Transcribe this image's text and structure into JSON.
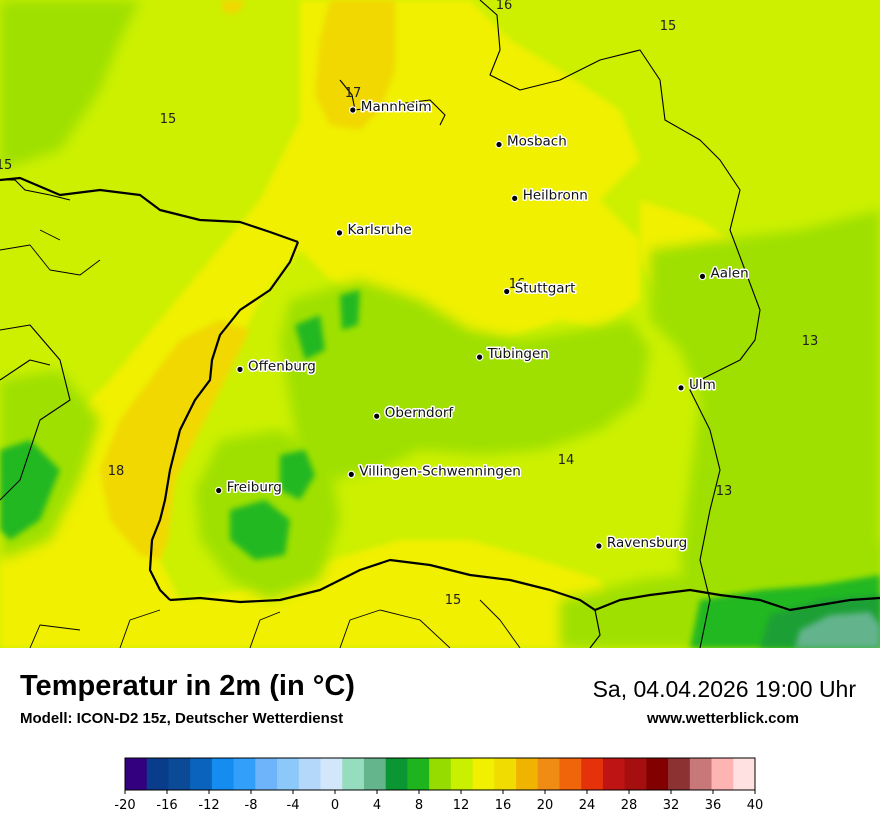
{
  "map": {
    "cities": [
      {
        "name": "Mannheim",
        "lon": 8.466,
        "lat": 49.488
      },
      {
        "name": "Mosbach",
        "lon": 9.146,
        "lat": 49.353
      },
      {
        "name": "Heilbronn",
        "lon": 9.219,
        "lat": 49.142
      },
      {
        "name": "Karlsruhe",
        "lon": 8.404,
        "lat": 49.007
      },
      {
        "name": "Aalen",
        "lon": 10.093,
        "lat": 48.837
      },
      {
        "name": "Stuttgart",
        "lon": 9.182,
        "lat": 48.778
      },
      {
        "name": "Tübingen",
        "lon": 9.056,
        "lat": 48.521
      },
      {
        "name": "Offenburg",
        "lon": 7.941,
        "lat": 48.473
      },
      {
        "name": "Ulm",
        "lon": 9.993,
        "lat": 48.401
      },
      {
        "name": "Oberndorf",
        "lon": 8.577,
        "lat": 48.29
      },
      {
        "name": "Villingen-Schwenningen",
        "lon": 8.459,
        "lat": 48.062
      },
      {
        "name": "Freiburg",
        "lon": 7.842,
        "lat": 47.999
      },
      {
        "name": "Ravensburg",
        "lon": 9.611,
        "lat": 47.782
      }
    ],
    "isotherm_labels": [
      "16",
      "15",
      "17",
      "15",
      "15",
      "16",
      "13",
      "13",
      "14",
      "18",
      "15"
    ],
    "colors": {
      "water_or_alps": "#9fd8c0",
      "c12_14": "#9fe000",
      "c14_16": "#ccf000",
      "c16_18": "#f0f000",
      "c18_20": "#f0d800",
      "c10_12": "#20b820",
      "c8_10": "#1aa034",
      "border": "#000000"
    }
  },
  "footer": {
    "title": "Temperatur in 2m (in °C)",
    "subtitle": "Modell: ICON-D2 15z, Deutscher Wetterdienst",
    "datetime": "Sa, 04.04.2026 19:00 Uhr",
    "website": "www.wetterblick.com"
  },
  "legend": {
    "min": -20,
    "max": 40,
    "step": 2,
    "tick_labels": [
      "-20",
      "-16",
      "-12",
      "-8",
      "-4",
      "0",
      "4",
      "8",
      "12",
      "16",
      "20",
      "24",
      "28",
      "32",
      "36",
      "40"
    ],
    "colors": [
      "#330080",
      "#0a3c8c",
      "#0a4a96",
      "#0a64be",
      "#148cf0",
      "#32a0fa",
      "#6eb4fa",
      "#8cc8fa",
      "#b4d8fa",
      "#d2e8fa",
      "#96dcbe",
      "#64b48c",
      "#0a9632",
      "#1eb41e",
      "#96dc00",
      "#c8f000",
      "#f0f000",
      "#f0dc00",
      "#f0b400",
      "#f08c14",
      "#f0640a",
      "#e6320a",
      "#be1414",
      "#a50f0f",
      "#820000",
      "#8c3232",
      "#c87878",
      "#ffb4b4",
      "#ffe1e1"
    ]
  }
}
